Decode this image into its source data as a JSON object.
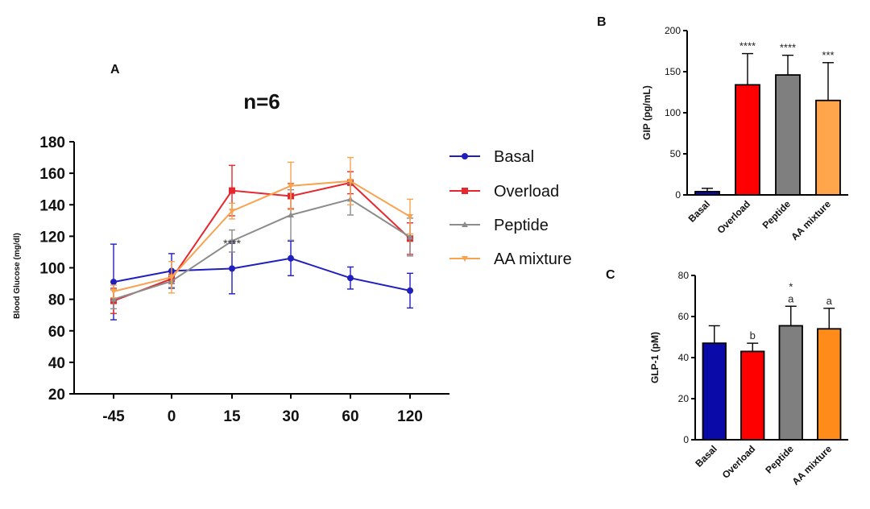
{
  "chart_data": [
    {
      "panel": "A",
      "type": "line",
      "title": "n=6",
      "xlabel": "",
      "ylabel": "Blood Glucose  (mg/dl)",
      "categories": [
        "-45",
        "0",
        "15",
        "30",
        "60",
        "120"
      ],
      "ylim": [
        20,
        180
      ],
      "yticks": [
        20,
        40,
        60,
        80,
        100,
        120,
        140,
        160,
        180
      ],
      "legend_position": "right",
      "grid": false,
      "series": [
        {
          "name": "Basal",
          "color": "#1f1fbf",
          "marker": "circle",
          "values": [
            91,
            98,
            99.5,
            106,
            93.5,
            85.5
          ],
          "err": [
            24,
            11,
            16,
            11,
            7,
            11
          ]
        },
        {
          "name": "Overload",
          "color": "#e8262d",
          "marker": "square",
          "values": [
            79,
            93,
            149,
            145.5,
            154,
            118.5
          ],
          "err": [
            8,
            3,
            16,
            8,
            7,
            10
          ]
        },
        {
          "name": "Peptide",
          "color": "#8c8c8c",
          "marker": "triangle-up",
          "values": [
            80,
            91.5,
            117,
            133.5,
            143.5,
            119.5
          ],
          "err": [
            6,
            4,
            7,
            16,
            10,
            12
          ]
        },
        {
          "name": "AA mixture",
          "color": "#f7a34f",
          "marker": "triangle-down",
          "values": [
            85,
            94,
            136,
            152,
            155,
            132.5
          ],
          "err": [
            4,
            10,
            5,
            15,
            15,
            11
          ]
        }
      ],
      "annotations": [
        {
          "text": "****",
          "category": "15",
          "y": 115
        }
      ]
    },
    {
      "panel": "B",
      "type": "bar",
      "title": "",
      "ylabel": "GIP (pg/mL)",
      "categories": [
        "Basal",
        "Overload",
        "Peptide",
        "AA mixture"
      ],
      "values": [
        4,
        134,
        146,
        115
      ],
      "err": [
        4,
        38,
        24,
        46
      ],
      "colors": [
        "#0a0aa8",
        "#ff0000",
        "#7f7f7f",
        "#ffa64d"
      ],
      "labels": [
        "",
        "****",
        "****",
        "***"
      ],
      "ylim": [
        0,
        200
      ],
      "yticks": [
        0,
        50,
        100,
        150,
        200
      ]
    },
    {
      "panel": "C",
      "type": "bar",
      "title": "",
      "ylabel": "GLP-1  (pM)",
      "categories": [
        "Basal",
        "Overload",
        "Peptide",
        "AA mixture"
      ],
      "values": [
        47,
        43,
        55.5,
        54
      ],
      "err": [
        8.5,
        4,
        9.5,
        10
      ],
      "colors": [
        "#0a0aa8",
        "#ff0000",
        "#7f7f7f",
        "#ff8c1a"
      ],
      "labels": [
        [
          ""
        ],
        [
          "b"
        ],
        [
          "*",
          "a"
        ],
        [
          "a"
        ]
      ],
      "ylim": [
        0,
        80
      ],
      "yticks": [
        0,
        20,
        40,
        60,
        80
      ]
    }
  ]
}
